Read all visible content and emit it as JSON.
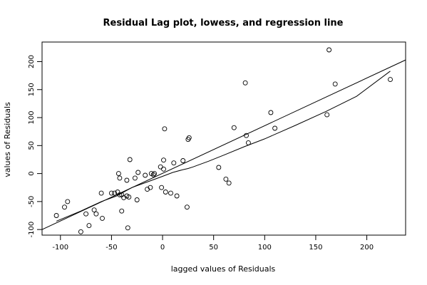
{
  "chart_data": {
    "type": "scatter",
    "title": "Residual Lag plot, lowess, and regression line",
    "xlabel": "lagged values of Residuals",
    "ylabel": "values of Residuals",
    "xlim": [
      -118,
      238
    ],
    "ylim": [
      -110,
      235
    ],
    "x_ticks": [
      -100,
      -50,
      0,
      50,
      100,
      150,
      200
    ],
    "y_ticks": [
      -100,
      -50,
      0,
      50,
      100,
      150,
      200
    ],
    "points": [
      [
        -104,
        -75
      ],
      [
        -96,
        -60
      ],
      [
        -93,
        -50
      ],
      [
        -80,
        -104
      ],
      [
        -75,
        -72
      ],
      [
        -72,
        -93
      ],
      [
        -67,
        -65
      ],
      [
        -65,
        -72
      ],
      [
        -60,
        -35
      ],
      [
        -59,
        -80
      ],
      [
        -50,
        -35
      ],
      [
        -47,
        -35
      ],
      [
        -44,
        -33
      ],
      [
        -43,
        0
      ],
      [
        -42,
        -38
      ],
      [
        -42,
        -8
      ],
      [
        -40,
        -67
      ],
      [
        -40,
        -38
      ],
      [
        -38,
        -43
      ],
      [
        -35,
        -40
      ],
      [
        -35,
        -12
      ],
      [
        -34,
        -97
      ],
      [
        -33,
        -42
      ],
      [
        -32,
        25
      ],
      [
        -27,
        -8
      ],
      [
        -25,
        -47
      ],
      [
        -24,
        2
      ],
      [
        -17,
        -3
      ],
      [
        -15,
        -28
      ],
      [
        -12,
        -25
      ],
      [
        -11,
        0
      ],
      [
        -9,
        -2
      ],
      [
        -8,
        0
      ],
      [
        -2,
        12
      ],
      [
        -1,
        -25
      ],
      [
        1,
        24
      ],
      [
        1,
        8
      ],
      [
        2,
        80
      ],
      [
        3,
        -33
      ],
      [
        8,
        -35
      ],
      [
        11,
        19
      ],
      [
        14,
        -40
      ],
      [
        20,
        23
      ],
      [
        24,
        -60
      ],
      [
        25,
        61
      ],
      [
        26,
        64
      ],
      [
        55,
        11
      ],
      [
        62,
        -10
      ],
      [
        65,
        -17
      ],
      [
        70,
        82
      ],
      [
        81,
        162
      ],
      [
        82,
        68
      ],
      [
        84,
        55
      ],
      [
        106,
        109
      ],
      [
        110,
        81
      ],
      [
        161,
        105
      ],
      [
        163,
        221
      ],
      [
        169,
        160
      ],
      [
        223,
        168
      ]
    ],
    "regression_line": {
      "x": [
        -118,
        238
      ],
      "y": [
        -100,
        203
      ]
    },
    "lowess_line": {
      "x": [
        -104,
        -80,
        -60,
        -45,
        -30,
        -15,
        0,
        10,
        20,
        25,
        30,
        45,
        60,
        80,
        100,
        130,
        160,
        190,
        223
      ],
      "y": [
        -85,
        -67,
        -50,
        -40,
        -25,
        -15,
        -5,
        2,
        7,
        9,
        12,
        22,
        33,
        48,
        62,
        86,
        111,
        138,
        183
      ]
    },
    "grid": false,
    "legend": "none"
  }
}
